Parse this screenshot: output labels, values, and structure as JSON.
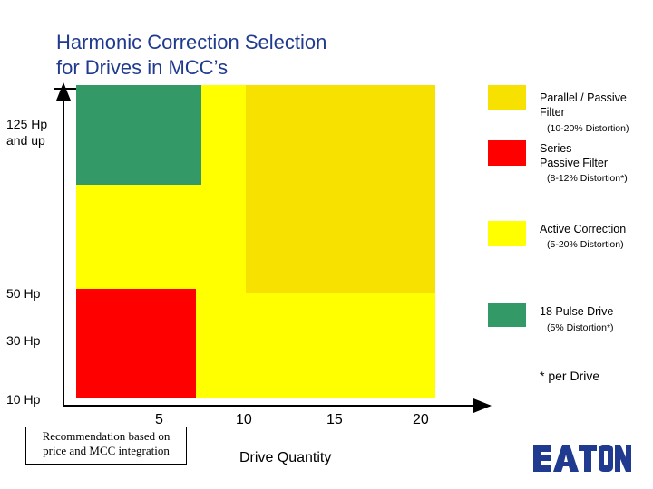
{
  "title_line1": "Harmonic Correction Selection",
  "title_line2": "for Drives in MCC’s",
  "colors": {
    "parallel_passive": "#f7e100",
    "series_passive": "#ff0000",
    "active": "#ffff00",
    "pulse18": "#339966",
    "title": "#1f3a8f"
  },
  "y_axis": {
    "labels": [
      "125 Hp and up",
      "50 Hp",
      "30 Hp",
      "10 Hp"
    ],
    "label_125_line1": "125 Hp",
    "label_125_line2": "and up",
    "label_50": "50 Hp",
    "label_30": "30 Hp",
    "label_10": "10 Hp"
  },
  "x_axis": {
    "ticks": [
      "5",
      "10",
      "15",
      "20"
    ],
    "title": "Drive Quantity"
  },
  "legend": [
    {
      "line1": "Parallel / Passive",
      "line2": "Filter",
      "sub": "(10-20% Distortion)",
      "color_key": "parallel_passive"
    },
    {
      "line1": "Series",
      "line2": "Passive Filter",
      "sub": "(8-12% Distortion*)",
      "color_key": "series_passive"
    },
    {
      "line1": "Active Correction",
      "line2": "",
      "sub": "(5-20% Distortion)",
      "color_key": "active"
    },
    {
      "line1": "18 Pulse Drive",
      "line2": "",
      "sub": "(5% Distortion*)",
      "color_key": "pulse18"
    }
  ],
  "footnote": "* per Drive",
  "note_line1": "Recommendation based on",
  "note_line2": "price and MCC integration",
  "logo_text": "EATON"
}
